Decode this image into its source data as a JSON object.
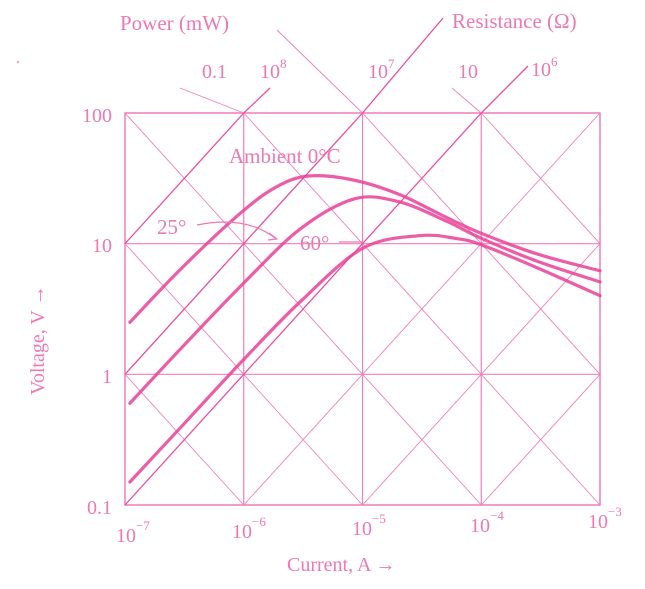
{
  "chart_data": {
    "type": "line",
    "scale": "log-log",
    "title": "",
    "xlabel": "Current, A →",
    "ylabel": "Voltage, V →",
    "xlim": [
      1e-07,
      0.001
    ],
    "ylim": [
      0.1,
      100
    ],
    "grid": true,
    "x_ticks": [
      {
        "value": 1e-07,
        "base": "10",
        "exp": "−7"
      },
      {
        "value": 1e-06,
        "base": "10",
        "exp": "−6"
      },
      {
        "value": 1e-05,
        "base": "10",
        "exp": "−5"
      },
      {
        "value": 0.0001,
        "base": "10",
        "exp": "−4"
      },
      {
        "value": 0.001,
        "base": "10",
        "exp": "−3"
      }
    ],
    "y_ticks": [
      {
        "value": 100,
        "label": "100"
      },
      {
        "value": 10,
        "label": "10"
      },
      {
        "value": 1,
        "label": "1"
      },
      {
        "value": 0.1,
        "label": "0.1"
      }
    ],
    "power_lines": {
      "title": "Power (mW)",
      "labels": [
        {
          "value_mW": 0.1,
          "label": "0.1"
        },
        {
          "value_mW": 1,
          "label": ""
        },
        {
          "value_mW": 10,
          "label": "10"
        }
      ]
    },
    "resistance_lines": {
      "title": "Resistance (Ω)",
      "labels": [
        {
          "value_ohm": 100000000.0,
          "base": "10",
          "exp": "8"
        },
        {
          "value_ohm": 10000000.0,
          "base": "10",
          "exp": "7"
        },
        {
          "value_ohm": 1000000.0,
          "base": "10",
          "exp": "6"
        }
      ]
    },
    "series": [
      {
        "name": "Ambient 0°C",
        "label": "Ambient 0°C",
        "current_A": [
          1.1e-07,
          3e-07,
          1e-06,
          2e-06,
          3.6e-06,
          8e-06,
          2e-05,
          5e-05,
          0.0001,
          0.0003,
          0.001
        ],
        "voltage_V": [
          2.5,
          6.5,
          18,
          28,
          33,
          31,
          24,
          16,
          12,
          8.3,
          6.2
        ]
      },
      {
        "name": "25°",
        "label": "25°",
        "current_A": [
          1.1e-07,
          3e-07,
          1e-06,
          3e-06,
          8.5e-06,
          2e-05,
          5e-05,
          0.0001,
          0.0003,
          0.001
        ],
        "voltage_V": [
          0.6,
          1.6,
          5,
          13,
          22,
          21,
          15,
          11,
          7.3,
          5.1
        ]
      },
      {
        "name": "60°",
        "label": "60°",
        "current_A": [
          1.1e-07,
          3e-07,
          1e-06,
          3e-06,
          1e-05,
          3e-05,
          6e-05,
          0.0001,
          0.0003,
          0.001
        ],
        "voltage_V": [
          0.15,
          0.4,
          1.3,
          3.6,
          9.2,
          11.5,
          11,
          9.8,
          6.5,
          4.0
        ]
      }
    ],
    "annotations": [
      {
        "text": "Ambient 0°C"
      },
      {
        "text": "25°"
      },
      {
        "text": "60°"
      }
    ],
    "colors": {
      "curve": "#ea3f97",
      "grid": "#f080bc",
      "text": "#ee78b4"
    }
  }
}
